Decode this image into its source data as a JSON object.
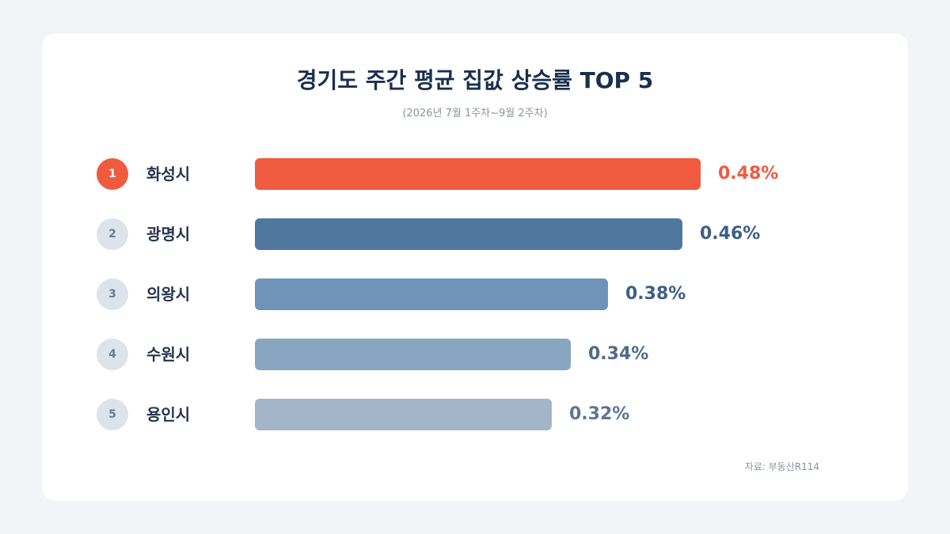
{
  "chart_data": {
    "type": "bar",
    "orientation": "horizontal",
    "title": "경기도 주간 평균 집값 상승률 TOP 5",
    "subtitle": "(2026년 7월 1주차~9월 2주차)",
    "source": "자료: 부동산R114",
    "unit": "%",
    "categories": [
      "화성시",
      "광명시",
      "의왕시",
      "수원시",
      "용인시"
    ],
    "ranks": [
      "1",
      "2",
      "3",
      "4",
      "5"
    ],
    "values": [
      0.48,
      0.46,
      0.38,
      0.34,
      0.32
    ],
    "value_labels": [
      "0.48%",
      "0.46%",
      "0.38%",
      "0.34%",
      "0.32%"
    ],
    "xlim": [
      0,
      0.48
    ],
    "bar_colors": [
      "#f05a3e",
      "#50789f",
      "#6f94b7",
      "#88a5c1",
      "#a4b5c9"
    ],
    "label_colors": [
      "#f05a3e",
      "#3e5f85",
      "#3e5f85",
      "#4f6b8c",
      "#5d7593"
    ],
    "highlight_rank_color": "#f05a3e"
  }
}
